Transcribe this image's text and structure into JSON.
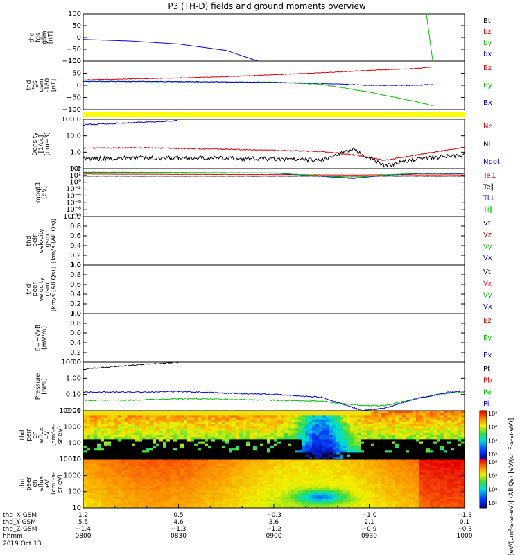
{
  "title": "P3 (TH-D) fields and ground moments overview",
  "colors": {
    "black": "#000000",
    "red": "#e00000",
    "green": "#00c000",
    "blue": "#0000e0",
    "yellow": "#ffff00"
  },
  "panels": [
    {
      "id": "fgs-gsm",
      "ylabel": [
        "thd",
        "fgs",
        "gsm",
        "[nT]"
      ],
      "ticks": [
        "100",
        "50",
        "0",
        "−50",
        "−100"
      ],
      "legend": [
        [
          "Bt",
          "black"
        ],
        [
          "bz",
          "red"
        ],
        [
          "by",
          "green"
        ],
        [
          "bx",
          "blue"
        ]
      ]
    },
    {
      "id": "fgs-gsm-rot",
      "ylabel": [
        "thd",
        "fgs",
        "gsm",
        "-180",
        "[nT]"
      ],
      "ticks": [
        "100",
        "50",
        "0",
        "−50",
        "−100"
      ],
      "legend": [
        [
          "Bz",
          "red"
        ],
        [
          "By",
          "green"
        ],
        [
          "Bx",
          "blue"
        ]
      ]
    },
    {
      "id": "density",
      "ylabel": [
        "Density",
        "[1/cc]",
        "[cm−3]"
      ],
      "ticks": [
        "100.0",
        "10.0",
        "1.0",
        "0.1"
      ],
      "legend": [
        [
          "Ne",
          "red"
        ],
        [
          "Ni",
          "black"
        ],
        [
          "Npot",
          "blue"
        ]
      ]
    },
    {
      "id": "temperature",
      "ylabel": [
        "moqt3",
        "[eV]"
      ],
      "ticks": [
        "10⁴",
        "10²",
        "10⁰",
        "10⁻²",
        "10⁻⁴",
        "10⁻⁶",
        "10⁻⁸",
        "10⁻¹⁰"
      ],
      "legend": [
        [
          "Te⊥",
          "red"
        ],
        [
          "Te∥",
          "black"
        ],
        [
          "Ti⊥",
          "blue"
        ],
        [
          "Ti∥",
          "green"
        ]
      ]
    },
    {
      "id": "peir-velocity",
      "ylabel": [
        "thd",
        "peir",
        "velocity",
        "gsm",
        "[km/s (All Qs)]"
      ],
      "ticks": [
        "1.0",
        "0.8",
        "0.6",
        "0.4",
        "0.2",
        "0.0"
      ],
      "legend": [
        [
          "Vt",
          "black"
        ],
        [
          "Vz",
          "red"
        ],
        [
          "Vy",
          "green"
        ],
        [
          "Vx",
          "blue"
        ]
      ]
    },
    {
      "id": "peer-velocity",
      "ylabel": [
        "thd",
        "peer",
        "velocity",
        "gsm",
        "[km/s (All Qs)]"
      ],
      "ticks": [
        "1.0",
        "0.8",
        "0.6",
        "0.4",
        "0.2",
        "0.0"
      ],
      "legend": [
        [
          "Vt",
          "black"
        ],
        [
          "Vz",
          "red"
        ],
        [
          "Vy",
          "green"
        ],
        [
          "Vx",
          "blue"
        ]
      ]
    },
    {
      "id": "efield",
      "ylabel": [
        "E=−VxB",
        "[mV/m]"
      ],
      "ticks": [
        "1.0",
        "0.8",
        "0.6",
        "0.4",
        "0.2",
        "0.0"
      ],
      "legend": [
        [
          "Ez",
          "red"
        ],
        [
          "Ey",
          "green"
        ],
        [
          "Ex",
          "blue"
        ]
      ]
    },
    {
      "id": "pressure",
      "ylabel": [
        "Pressure",
        "[nPa]"
      ],
      "ticks": [
        "10.00",
        "1.00",
        "0.10",
        "0.01"
      ],
      "legend": [
        [
          "Pt",
          "black"
        ],
        [
          "Pb",
          "red"
        ],
        [
          "Pe",
          "green"
        ],
        [
          "Pi",
          "blue"
        ]
      ]
    },
    {
      "id": "peir-eflux",
      "ylabel": [
        "thd",
        "peir",
        "en",
        "eflux",
        "eV",
        "(cm²-s-",
        "sr-eV)"
      ],
      "ticks": [
        "10000",
        "1000",
        "100",
        "10"
      ],
      "legend": []
    },
    {
      "id": "peer-eflux",
      "ylabel": [
        "thd",
        "peer",
        "en",
        "eflux",
        "eV",
        "(cm²-s-",
        "sr-eV)"
      ],
      "ticks": [
        "10000",
        "1000",
        "100",
        "10"
      ],
      "legend": []
    }
  ],
  "colorbar": {
    "ticks": [
      "10⁸",
      "10⁶",
      "10⁴",
      "10²",
      "10⁸",
      "10⁶",
      "10⁴",
      "10²"
    ],
    "label": "[eV/(cm²-s-sr-eV)] (All Qs) [eV/(cm²-s-sr-eV)]"
  },
  "xaxis": {
    "rows": [
      {
        "label": "thd_X-GSM",
        "values": [
          "1.2",
          "0.5",
          "−0.3",
          "−1.0",
          "−1.3"
        ]
      },
      {
        "label": "thd_Y-GSM",
        "values": [
          "5.5",
          "4.6",
          "3.6",
          "2.1",
          "0.1"
        ]
      },
      {
        "label": "thd_Z-GSM",
        "values": [
          "−1.4",
          "−1.3",
          "−1.2",
          "−0.9",
          "−0.3"
        ]
      },
      {
        "label": "hhmm",
        "values": [
          "0800",
          "0830",
          "0900",
          "0930",
          "1000"
        ]
      }
    ],
    "date": "2019 Oct 13"
  },
  "chart_data": [
    {
      "type": "line",
      "panel": "fgs-gsm",
      "ylim": [
        -100,
        100
      ],
      "x": [
        "0800",
        "0815",
        "0830",
        "0845",
        "0855",
        "0948",
        "0950"
      ],
      "series": [
        {
          "name": "bx",
          "values": [
            -8,
            -15,
            -28,
            -55,
            -100,
            null,
            null
          ]
        },
        {
          "name": "by",
          "values": [
            null,
            null,
            null,
            null,
            null,
            100,
            -100
          ]
        }
      ]
    },
    {
      "type": "line",
      "panel": "fgs-gsm-rot",
      "ylim": [
        -150,
        100
      ],
      "x": [
        "0800",
        "0815",
        "0830",
        "0845",
        "0900",
        "0915",
        "0930",
        "0945",
        "0950"
      ],
      "series": [
        {
          "name": "Bz",
          "values": [
            3,
            8,
            13,
            20,
            30,
            40,
            52,
            62,
            70
          ]
        },
        {
          "name": "By",
          "values": [
            -5,
            -6,
            -7,
            -8,
            -9,
            -20,
            -60,
            -110,
            -130
          ]
        },
        {
          "name": "Bx",
          "values": [
            -5,
            -5,
            -6,
            -8,
            -10,
            -15,
            -25,
            -25,
            -20
          ]
        }
      ]
    },
    {
      "type": "line",
      "panel": "density",
      "ylog": true,
      "ylim": [
        0.05,
        200
      ],
      "x": [
        "0800",
        "0815",
        "0830",
        "0845",
        "0900",
        "0915",
        "0925",
        "0935",
        "0945",
        "1000"
      ],
      "series": [
        {
          "name": "Ne",
          "values": [
            1.5,
            1.7,
            1.5,
            1.3,
            1.1,
            0.9,
            0.5,
            0.2,
            0.5,
            1.8
          ]
        },
        {
          "name": "Ni",
          "values": [
            0.25,
            0.3,
            0.3,
            0.28,
            0.25,
            0.2,
            1.2,
            0.08,
            0.25,
            0.5
          ]
        },
        {
          "name": "Npot",
          "values": [
            80,
            110,
            160,
            null,
            null,
            null,
            null,
            null,
            null,
            null
          ]
        }
      ]
    },
    {
      "type": "line",
      "panel": "temperature",
      "ylog": true,
      "ylim": [
        1e-11,
        100000.0
      ],
      "x": [
        "0800",
        "0830",
        "0900",
        "0925",
        "0935",
        "0945",
        "1000"
      ],
      "series": [
        {
          "name": "Te⊥",
          "values": [
            1500,
            1200,
            1000,
            700,
            900,
            800,
            800
          ]
        },
        {
          "name": "Te∥",
          "values": [
            300,
            300,
            300,
            300,
            300,
            300,
            300
          ]
        },
        {
          "name": "Ti⊥",
          "values": [
            5000,
            4000,
            3000,
            50,
            600,
            2000,
            2000
          ]
        },
        {
          "name": "Ti∥",
          "values": [
            6000,
            5000,
            3500,
            80,
            800,
            2500,
            2500
          ]
        }
      ]
    },
    {
      "type": "line",
      "panel": "peir-velocity",
      "ylim": [
        0,
        1
      ],
      "series": []
    },
    {
      "type": "line",
      "panel": "peer-velocity",
      "ylim": [
        0,
        1
      ],
      "series": []
    },
    {
      "type": "line",
      "panel": "efield",
      "ylim": [
        0,
        1
      ],
      "series": []
    },
    {
      "type": "line",
      "panel": "pressure",
      "ylog": true,
      "ylim": [
        0.005,
        20
      ],
      "x": [
        "0800",
        "0815",
        "0830",
        "0845",
        "0900",
        "0915",
        "0928",
        "0935",
        "0945",
        "0955",
        "1000"
      ],
      "series": [
        {
          "name": "Pt",
          "values": [
            6,
            12,
            20,
            null,
            null,
            null,
            null,
            null,
            null,
            null,
            null
          ]
        },
        {
          "name": "Pe",
          "values": [
            0.03,
            0.03,
            0.04,
            0.035,
            0.03,
            0.025,
            0.012,
            0.012,
            0.04,
            0.1,
            0.12
          ]
        },
        {
          "name": "Pi",
          "values": [
            0.12,
            0.12,
            0.13,
            0.1,
            0.08,
            0.05,
            0.005,
            0.008,
            0.04,
            0.12,
            0.14
          ]
        }
      ]
    },
    {
      "type": "heatmap",
      "panel": "peir-eflux",
      "ylog": true,
      "ylim": [
        5,
        20000
      ],
      "zlog": true,
      "zlim": [
        100,
        100000000
      ]
    },
    {
      "type": "heatmap",
      "panel": "peer-eflux",
      "ylog": true,
      "ylim": [
        5,
        20000
      ],
      "zlog": true,
      "zlim": [
        100,
        100000000
      ]
    }
  ]
}
